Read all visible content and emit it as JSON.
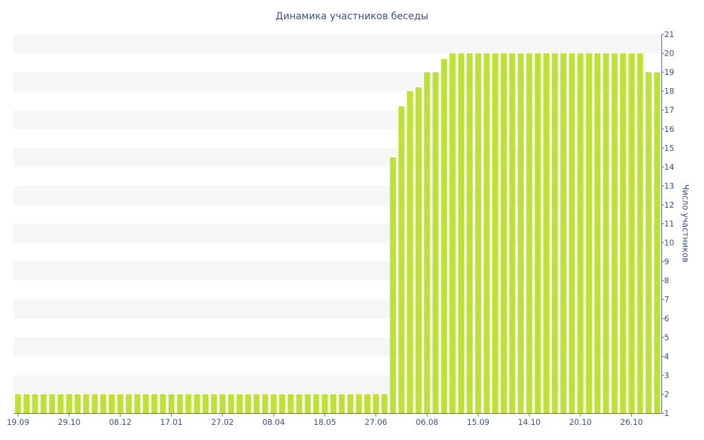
{
  "chart_data": {
    "type": "bar",
    "title": "Динамика участников беседы",
    "ylabel": "Число участников",
    "xlabel": "",
    "ylim": [
      1,
      21
    ],
    "y_ticks": [
      1,
      2,
      3,
      4,
      5,
      6,
      7,
      8,
      9,
      10,
      11,
      12,
      13,
      14,
      15,
      16,
      17,
      18,
      19,
      20,
      21
    ],
    "x_tick_labels": [
      {
        "label": "19.09",
        "index": 0
      },
      {
        "label": "29.10",
        "index": 6
      },
      {
        "label": "08.12",
        "index": 12
      },
      {
        "label": "17.01",
        "index": 18
      },
      {
        "label": "27.02",
        "index": 24
      },
      {
        "label": "08.04",
        "index": 30
      },
      {
        "label": "18.05",
        "index": 36
      },
      {
        "label": "27.06",
        "index": 42
      },
      {
        "label": "06.08",
        "index": 48
      },
      {
        "label": "15.09",
        "index": 54
      },
      {
        "label": "14.10",
        "index": 60
      },
      {
        "label": "20.10",
        "index": 66
      },
      {
        "label": "26.10",
        "index": 72
      }
    ],
    "grid": "alternating horizontal bands",
    "y_axis_position": "right",
    "series": [
      {
        "color": "#bde233",
        "values": [
          2,
          2,
          2,
          2,
          2,
          2,
          2,
          2,
          2,
          2,
          2,
          2,
          2,
          2,
          2,
          2,
          2,
          2,
          2,
          2,
          2,
          2,
          2,
          2,
          2,
          2,
          2,
          2,
          2,
          2,
          2,
          2,
          2,
          2,
          2,
          2,
          2,
          2,
          2,
          2,
          2,
          2,
          2,
          2,
          14.5,
          17.2,
          18,
          18.2,
          19,
          19,
          19.7,
          20,
          20,
          20,
          20,
          20,
          20,
          20,
          20,
          20,
          20,
          20,
          20,
          20,
          20,
          20,
          20,
          20,
          20,
          20,
          20,
          20,
          20,
          20,
          19,
          19
        ]
      }
    ]
  }
}
